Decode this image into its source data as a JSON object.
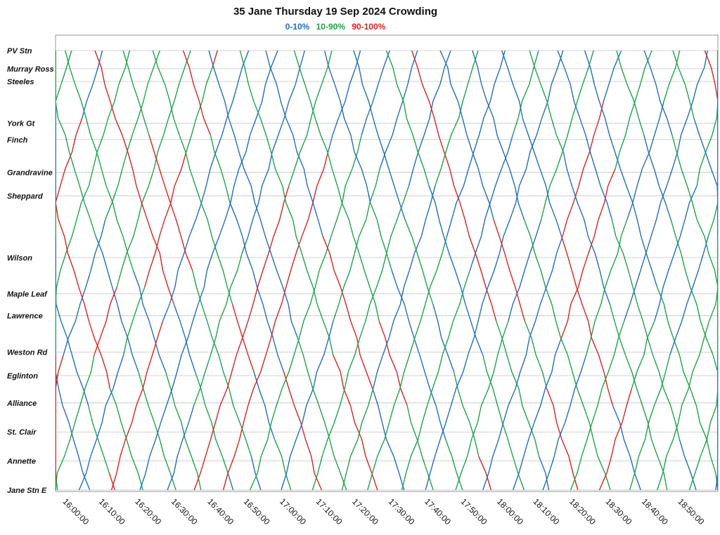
{
  "chart_data": {
    "type": "line",
    "title": "35 Jane Thursday 19 Sep 2024 Crowding",
    "legend": [
      {
        "label": "0-10%",
        "color": "#1f6fbf"
      },
      {
        "label": "10-90%",
        "color": "#1aa64a"
      },
      {
        "label": "90-100%",
        "color": "#e02020"
      }
    ],
    "legend_placement": "top-center",
    "grid": "horizontal dashed at stops",
    "xlim": [
      "15:57:00",
      "19:00:00"
    ],
    "x_ticks": [
      "16:00:00",
      "16:10:00",
      "16:20:00",
      "16:30:00",
      "16:40:00",
      "16:50:00",
      "17:00:00",
      "17:10:00",
      "17:20:00",
      "17:30:00",
      "17:40:00",
      "17:50:00",
      "18:00:00",
      "18:10:00",
      "18:20:00",
      "18:30:00",
      "18:40:00",
      "18:50:00"
    ],
    "stops": [
      {
        "name": "PV Stn",
        "pos": 0
      },
      {
        "name": "Murray Ross",
        "pos": 1.0
      },
      {
        "name": "Steeles",
        "pos": 1.7
      },
      {
        "name": "York Gt",
        "pos": 4.0
      },
      {
        "name": "Finch",
        "pos": 4.9
      },
      {
        "name": "Grandravine",
        "pos": 6.7
      },
      {
        "name": "Sheppard",
        "pos": 8.0
      },
      {
        "name": "Wilson",
        "pos": 11.4
      },
      {
        "name": "Maple Leaf",
        "pos": 13.4
      },
      {
        "name": "Lawrence",
        "pos": 14.6
      },
      {
        "name": "Weston Rd",
        "pos": 16.6
      },
      {
        "name": "Eglinton",
        "pos": 17.9
      },
      {
        "name": "Alliance",
        "pos": 19.4
      },
      {
        "name": "St. Clair",
        "pos": 21.0
      },
      {
        "name": "Annette",
        "pos": 22.6
      },
      {
        "name": "Jane Stn E",
        "pos": 24.2
      }
    ],
    "ylim": [
      -0.15,
      24.2
    ],
    "trip_headway_minutes": 4,
    "trip_run_minutes": 38,
    "segments": [
      {
        "band": "0-10%",
        "color": "#1f6fbf"
      },
      {
        "band": "10-90%",
        "color": "#1aa64a"
      },
      {
        "band": "90-100%",
        "color": "#e02020"
      }
    ]
  }
}
